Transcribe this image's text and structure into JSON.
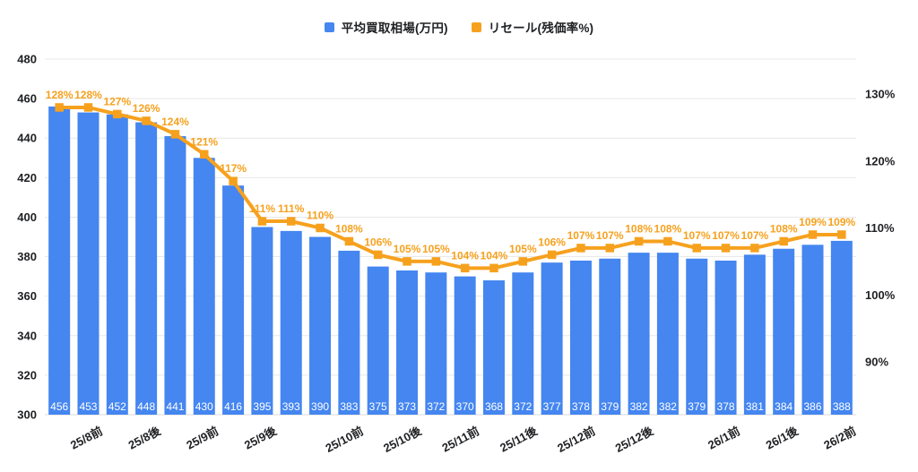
{
  "chart_data": {
    "type": "combo",
    "legend_position": "top",
    "grid": "horizontal",
    "series": [
      {
        "name": "平均買取相場(万円)",
        "type": "bar",
        "axis": "left",
        "color": "#4586F0",
        "value_label_color": "#ffffff",
        "values": [
          456,
          453,
          452,
          448,
          441,
          430,
          416,
          395,
          393,
          390,
          383,
          375,
          373,
          372,
          370,
          368,
          372,
          377,
          378,
          379,
          382,
          382,
          379,
          378,
          381,
          384,
          386,
          388
        ]
      },
      {
        "name": "リセール(残価率%)",
        "type": "line",
        "axis": "right",
        "color": "#F6A11E",
        "label_suffix": "%",
        "values": [
          128,
          128,
          127,
          126,
          124,
          121,
          117,
          111,
          111,
          110,
          108,
          106,
          105,
          105,
          104,
          104,
          105,
          106,
          107,
          107,
          108,
          108,
          107,
          107,
          107,
          108,
          109,
          109
        ]
      }
    ],
    "x_labels": [
      {
        "text": "25/8前",
        "slot": 1
      },
      {
        "text": "25/8後",
        "slot": 3
      },
      {
        "text": "25/9前",
        "slot": 5
      },
      {
        "text": "25/9後",
        "slot": 7
      },
      {
        "text": "25/10前",
        "slot": 10
      },
      {
        "text": "25/10後",
        "slot": 12
      },
      {
        "text": "25/11前",
        "slot": 14
      },
      {
        "text": "25/11後",
        "slot": 16
      },
      {
        "text": "25/12前",
        "slot": 18
      },
      {
        "text": "25/12後",
        "slot": 20
      },
      {
        "text": "26/1前",
        "slot": 23
      },
      {
        "text": "26/1後",
        "slot": 25
      },
      {
        "text": "26/2前",
        "slot": 27
      }
    ],
    "left_axis": {
      "min": 300,
      "max": 480,
      "ticks": [
        480,
        460,
        440,
        420,
        400,
        380,
        360,
        340,
        320,
        300
      ]
    },
    "right_axis": {
      "min": 90,
      "max": 130,
      "ticks": [
        130,
        120,
        110,
        100,
        90
      ],
      "suffix": "%"
    }
  },
  "colors": {
    "grid": "#e8e8e8",
    "baseline": "#d9d9d9",
    "axis_text": "#202124",
    "background": "#ffffff"
  }
}
